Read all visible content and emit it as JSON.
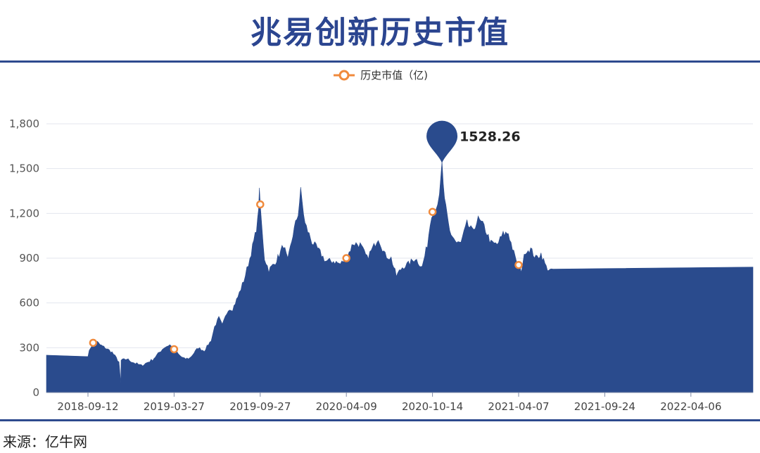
{
  "chart_data": {
    "type": "area",
    "title": "兆易创新历史市值",
    "series": [
      {
        "name": "历史市值（亿)",
        "color": "#2a4b8d",
        "values": [
          [
            0,
            250
          ],
          [
            0.03,
            300
          ],
          [
            0.08,
            355
          ],
          [
            0.14,
            320
          ],
          [
            0.2,
            300
          ],
          [
            0.28,
            270
          ],
          [
            0.33,
            230
          ],
          [
            0.36,
            205
          ],
          [
            0.38,
            60
          ],
          [
            0.385,
            215
          ],
          [
            0.45,
            225
          ],
          [
            0.55,
            195
          ],
          [
            0.62,
            180
          ],
          [
            0.75,
            220
          ],
          [
            0.88,
            300
          ],
          [
            0.95,
            320
          ],
          [
            1.0,
            290
          ],
          [
            1.06,
            250
          ],
          [
            1.12,
            225
          ],
          [
            1.18,
            230
          ],
          [
            1.28,
            300
          ],
          [
            1.35,
            280
          ],
          [
            1.43,
            350
          ],
          [
            1.47,
            440
          ],
          [
            1.52,
            500
          ],
          [
            1.56,
            450
          ],
          [
            1.63,
            560
          ],
          [
            1.68,
            560
          ],
          [
            1.74,
            640
          ],
          [
            1.81,
            750
          ],
          [
            1.88,
            900
          ],
          [
            1.94,
            1050
          ],
          [
            1.97,
            1150
          ],
          [
            1.99,
            1340
          ],
          [
            2.02,
            1100
          ],
          [
            2.05,
            900
          ],
          [
            2.1,
            820
          ],
          [
            2.16,
            860
          ],
          [
            2.22,
            920
          ],
          [
            2.27,
            990
          ],
          [
            2.32,
            880
          ],
          [
            2.38,
            1060
          ],
          [
            2.44,
            1200
          ],
          [
            2.47,
            1350
          ],
          [
            2.52,
            1130
          ],
          [
            2.6,
            1010
          ],
          [
            2.68,
            950
          ],
          [
            2.76,
            880
          ],
          [
            2.85,
            880
          ],
          [
            2.93,
            860
          ],
          [
            3.0,
            900
          ],
          [
            3.08,
            1000
          ],
          [
            3.16,
            990
          ],
          [
            3.24,
            900
          ],
          [
            3.32,
            980
          ],
          [
            3.37,
            1040
          ],
          [
            3.45,
            920
          ],
          [
            3.52,
            900
          ],
          [
            3.58,
            780
          ],
          [
            3.65,
            840
          ],
          [
            3.72,
            860
          ],
          [
            3.8,
            900
          ],
          [
            3.88,
            840
          ],
          [
            3.94,
            990
          ],
          [
            3.99,
            1200
          ],
          [
            4.04,
            1250
          ],
          [
            4.08,
            1300
          ],
          [
            4.11,
            1528.26
          ],
          [
            4.14,
            1280
          ],
          [
            4.2,
            1080
          ],
          [
            4.28,
            1000
          ],
          [
            4.33,
            1000
          ],
          [
            4.4,
            1130
          ],
          [
            4.46,
            1080
          ],
          [
            4.53,
            1160
          ],
          [
            4.6,
            1110
          ],
          [
            4.68,
            1000
          ],
          [
            4.75,
            990
          ],
          [
            4.82,
            1060
          ],
          [
            4.88,
            1070
          ],
          [
            4.96,
            900
          ],
          [
            5.03,
            820
          ],
          [
            5.08,
            950
          ],
          [
            5.14,
            960
          ],
          [
            5.2,
            900
          ],
          [
            5.26,
            930
          ],
          [
            5.32,
            840
          ],
          [
            5.38,
            810
          ],
          [
            5.42,
            840
          ]
        ],
        "markers_x": [
          0.06,
          1.0,
          2.0,
          3.0,
          4.0,
          5.0
        ]
      }
    ],
    "x_ticks": [
      "2018-09-12",
      "2019-03-27",
      "2019-09-27",
      "2020-04-09",
      "2020-10-14",
      "2021-04-07",
      "2021-09-24",
      "2022-04-06"
    ],
    "y_ticks": [
      "0",
      "300",
      "600",
      "900",
      "1,200",
      "1,500",
      "1,800"
    ],
    "ylim": [
      0,
      1800
    ],
    "peak": {
      "label": "1528.26",
      "value": 1528.26
    },
    "grid": true,
    "legend": "top-center"
  },
  "source": "来源：亿牛网"
}
